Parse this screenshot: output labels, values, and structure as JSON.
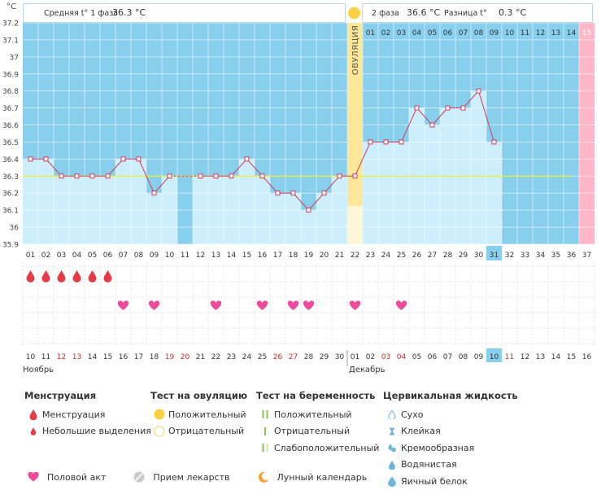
{
  "header": {
    "unit": "°C",
    "phase1_label": "Средняя t° 1 фаза",
    "phase1_value": "36.3 °C",
    "phase2_label": "2 фаза",
    "phase2_value": "36.6 °C",
    "diff_label": "Разница t°",
    "diff_value": "0.3 °C",
    "ovulation_label": "ОВУЛЯЦИЯ"
  },
  "colors": {
    "bg_blue": "#88cfee",
    "bar_fill": "#cdeefd",
    "ovulation": "#fde79a",
    "pink": "#ffb6c8",
    "line": "#d23a57",
    "coverline": "#e8ef3d",
    "heart": "#ee4b9b",
    "drop": "#e53b47",
    "weekend": "#d32a2a"
  },
  "chart_data": {
    "type": "line",
    "ylabel": "°C",
    "ylim": [
      35.9,
      37.2
    ],
    "y_ticks": [
      "35.9",
      "36",
      "36.1",
      "36.2",
      "36.3",
      "36.4",
      "36.5",
      "36.6",
      "36.7",
      "36.8",
      "36.9",
      "37",
      "37.1",
      "37.2"
    ],
    "cycle_days": [
      "01",
      "02",
      "03",
      "04",
      "05",
      "06",
      "07",
      "08",
      "09",
      "10",
      "11",
      "12",
      "13",
      "14",
      "15",
      "16",
      "17",
      "18",
      "19",
      "20",
      "21",
      "22",
      "23",
      "24",
      "25",
      "26",
      "27",
      "28",
      "29",
      "30",
      "31",
      "32",
      "33",
      "34",
      "35",
      "36",
      "37"
    ],
    "temperatures": [
      36.4,
      36.4,
      36.3,
      36.3,
      36.3,
      36.3,
      36.4,
      36.4,
      36.2,
      36.3,
      null,
      36.3,
      36.3,
      36.3,
      36.4,
      36.3,
      36.2,
      36.2,
      36.1,
      36.2,
      36.3,
      36.3,
      36.5,
      36.5,
      36.5,
      36.7,
      36.6,
      36.7,
      36.7,
      36.8,
      36.5,
      null,
      null,
      null,
      null,
      null,
      null
    ],
    "coverline": 36.3,
    "ovulation_day": 22,
    "current_day": 31,
    "phase2_day_labels": [
      "01",
      "02",
      "03",
      "04",
      "05",
      "06",
      "07",
      "08",
      "09",
      "10",
      "11",
      "12",
      "13",
      "14",
      "15"
    ],
    "menstruation_days": [
      1,
      2,
      3,
      4,
      5,
      6
    ],
    "intercourse_days": [
      7,
      9,
      13,
      16,
      18,
      19,
      22,
      25
    ],
    "dates": [
      "10",
      "11",
      "12",
      "13",
      "14",
      "15",
      "16",
      "17",
      "18",
      "19",
      "20",
      "21",
      "22",
      "23",
      "24",
      "25",
      "26",
      "27",
      "28",
      "29",
      "30",
      "01",
      "02",
      "03",
      "04",
      "05",
      "06",
      "07",
      "08",
      "09",
      "10",
      "11",
      "12",
      "13",
      "14",
      "15",
      "16"
    ],
    "weekend_days": [
      3,
      4,
      10,
      11,
      17,
      18,
      24,
      25,
      32
    ],
    "month_labels": [
      "Ноябрь",
      "Декабрь"
    ]
  },
  "legend": {
    "menstruation": {
      "title": "Менструация",
      "items": [
        "Менструация",
        "Небольшие выделения"
      ]
    },
    "ovulation_test": {
      "title": "Тест на овуляцию",
      "items": [
        "Положительный",
        "Отрицательный"
      ]
    },
    "pregnancy_test": {
      "title": "Тест на беременность",
      "items": [
        "Положительный",
        "Отрицательный",
        "Слабоположительный"
      ]
    },
    "cervical": {
      "title": "Цервикальная жидкость",
      "items": [
        "Сухо",
        "Клейкая",
        "Кремообразная",
        "Водянистая",
        "Яичный белок"
      ]
    },
    "bottom": [
      "Половой акт",
      "Прием лекарств",
      "Лунный календарь"
    ]
  }
}
